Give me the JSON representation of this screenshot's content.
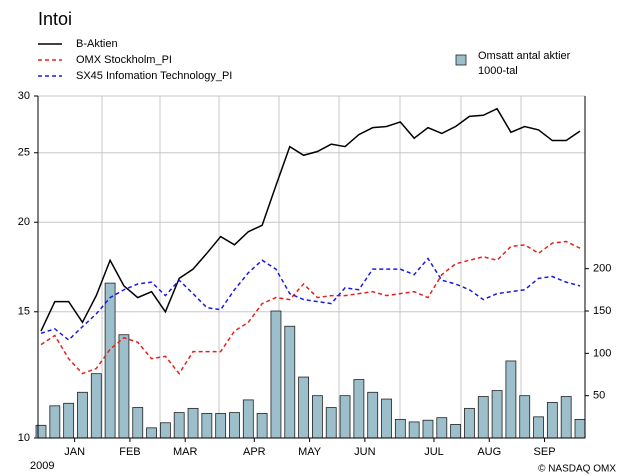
{
  "chart_data": {
    "type": "line",
    "title": "Intoi",
    "categories": [
      null,
      null,
      "JAN",
      null,
      null,
      null,
      "FEB",
      null,
      null,
      null,
      "MAR",
      null,
      null,
      null,
      null,
      "APR",
      null,
      null,
      null,
      "MAY",
      null,
      null,
      null,
      "JUN",
      null,
      null,
      null,
      null,
      "JUL",
      null,
      null,
      null,
      "AUG",
      null,
      null,
      null,
      "SEP",
      null,
      null,
      null
    ],
    "year_label": "2009",
    "source": "© NASDAQ OMX",
    "series": [
      {
        "name": "B-Aktien",
        "color": "#000000",
        "dash": "solid",
        "values": [
          14.1,
          15.5,
          15.5,
          14.5,
          15.8,
          17.7,
          16.3,
          15.7,
          16.0,
          15.0,
          16.7,
          17.2,
          18.1,
          19.1,
          18.6,
          19.4,
          19.8,
          22.5,
          25.5,
          24.8,
          25.1,
          25.7,
          25.5,
          26.5,
          27.1,
          27.2,
          27.6,
          26.2,
          27.1,
          26.6,
          27.2,
          28.1,
          28.2,
          28.8,
          26.7,
          27.2,
          26.9,
          26.0,
          26.0,
          26.8
        ]
      },
      {
        "name": "OMX Stockholm_PI",
        "color": "#e8201a",
        "dash": "dashed",
        "values": [
          13.5,
          13.9,
          12.9,
          12.3,
          12.5,
          13.3,
          13.8,
          13.6,
          12.9,
          13.0,
          12.3,
          13.2,
          13.2,
          13.2,
          14.1,
          14.5,
          15.4,
          15.7,
          15.6,
          16.4,
          15.7,
          15.8,
          15.8,
          15.9,
          16.0,
          15.8,
          15.9,
          16.0,
          15.7,
          16.9,
          17.5,
          17.7,
          17.9,
          17.7,
          18.5,
          18.6,
          18.1,
          18.7,
          18.8,
          18.4
        ]
      },
      {
        "name": "SX45 Infomation Technology_PI",
        "color": "#1a1ae0",
        "dash": "dashed",
        "values": [
          14.0,
          14.2,
          13.7,
          14.3,
          14.9,
          15.7,
          16.1,
          16.4,
          16.5,
          15.8,
          16.6,
          15.9,
          15.2,
          15.1,
          16.1,
          17.0,
          17.7,
          17.2,
          15.9,
          15.6,
          15.5,
          15.4,
          16.2,
          16.1,
          17.2,
          17.2,
          17.2,
          16.9,
          17.8,
          16.6,
          16.4,
          16.1,
          15.6,
          15.9,
          16.0,
          16.1,
          16.7,
          16.8,
          16.5,
          16.3
        ]
      },
      {
        "name": "Omsatt antal aktier",
        "unit_label": "1000-tal",
        "type": "bar",
        "axis": "y2",
        "color": "#9dbfcc",
        "values": [
          15,
          38,
          41,
          54,
          76,
          183,
          122,
          36,
          12,
          18,
          30,
          35,
          29,
          29,
          30,
          45,
          29,
          150,
          132,
          72,
          50,
          36,
          50,
          69,
          54,
          46,
          22,
          19,
          21,
          24,
          16,
          35,
          49,
          56,
          91,
          50,
          25,
          42,
          49,
          22
        ]
      }
    ],
    "ylim": [
      10,
      30
    ],
    "yticks": [
      10,
      15,
      20,
      25,
      30
    ],
    "log_scale": true,
    "y2lim": [
      0,
      404
    ],
    "y2ticks": [
      50,
      100,
      150,
      200
    ],
    "grid": true
  }
}
